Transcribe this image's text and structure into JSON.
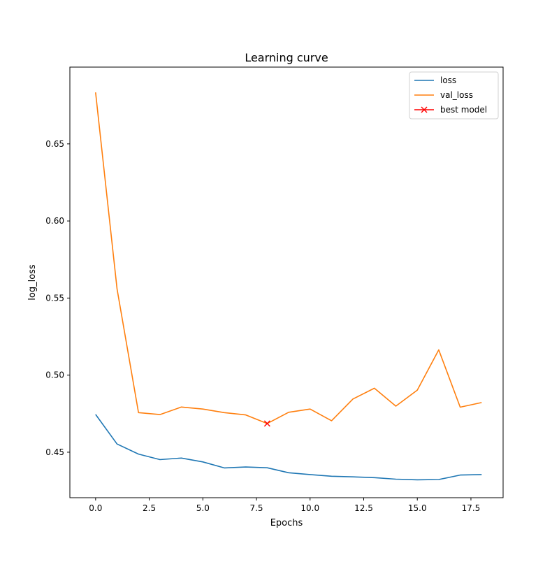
{
  "chart_data": {
    "type": "line",
    "title": "Learning curve",
    "xlabel": "Epochs",
    "ylabel": "log_loss",
    "xlim": [
      -1.2,
      19.0
    ],
    "ylim": [
      0.4205,
      0.6998
    ],
    "x_ticks": [
      0.0,
      2.5,
      5.0,
      7.5,
      10.0,
      12.5,
      15.0,
      17.5
    ],
    "x_tick_labels": [
      "0.0",
      "2.5",
      "5.0",
      "7.5",
      "10.0",
      "12.5",
      "15.0",
      "17.5"
    ],
    "y_ticks": [
      0.45,
      0.5,
      0.55,
      0.6,
      0.65
    ],
    "y_tick_labels": [
      "0.45",
      "0.50",
      "0.55",
      "0.60",
      "0.65"
    ],
    "grid": false,
    "legend_position": "top-right",
    "x": [
      0,
      1,
      2,
      3,
      4,
      5,
      6,
      7,
      8,
      9,
      10,
      11,
      12,
      13,
      14,
      15,
      16,
      17,
      18
    ],
    "series": [
      {
        "name": "loss",
        "color": "#1f77b4",
        "values": [
          0.4745,
          0.4553,
          0.4488,
          0.4452,
          0.4462,
          0.4437,
          0.4398,
          0.4404,
          0.4399,
          0.4367,
          0.4355,
          0.4344,
          0.434,
          0.4335,
          0.4325,
          0.4321,
          0.4323,
          0.4352,
          0.4355
        ]
      },
      {
        "name": "val_loss",
        "color": "#ff7f0e",
        "values": [
          0.6834,
          0.556,
          0.4757,
          0.4744,
          0.4793,
          0.478,
          0.4757,
          0.4742,
          0.4686,
          0.4759,
          0.478,
          0.4704,
          0.4845,
          0.4915,
          0.4799,
          0.4903,
          0.5164,
          0.4792,
          0.4822
        ]
      }
    ],
    "best_model": {
      "name": "best model",
      "color": "#ff0000",
      "marker": "x",
      "x": 8,
      "y": 0.4686
    }
  }
}
